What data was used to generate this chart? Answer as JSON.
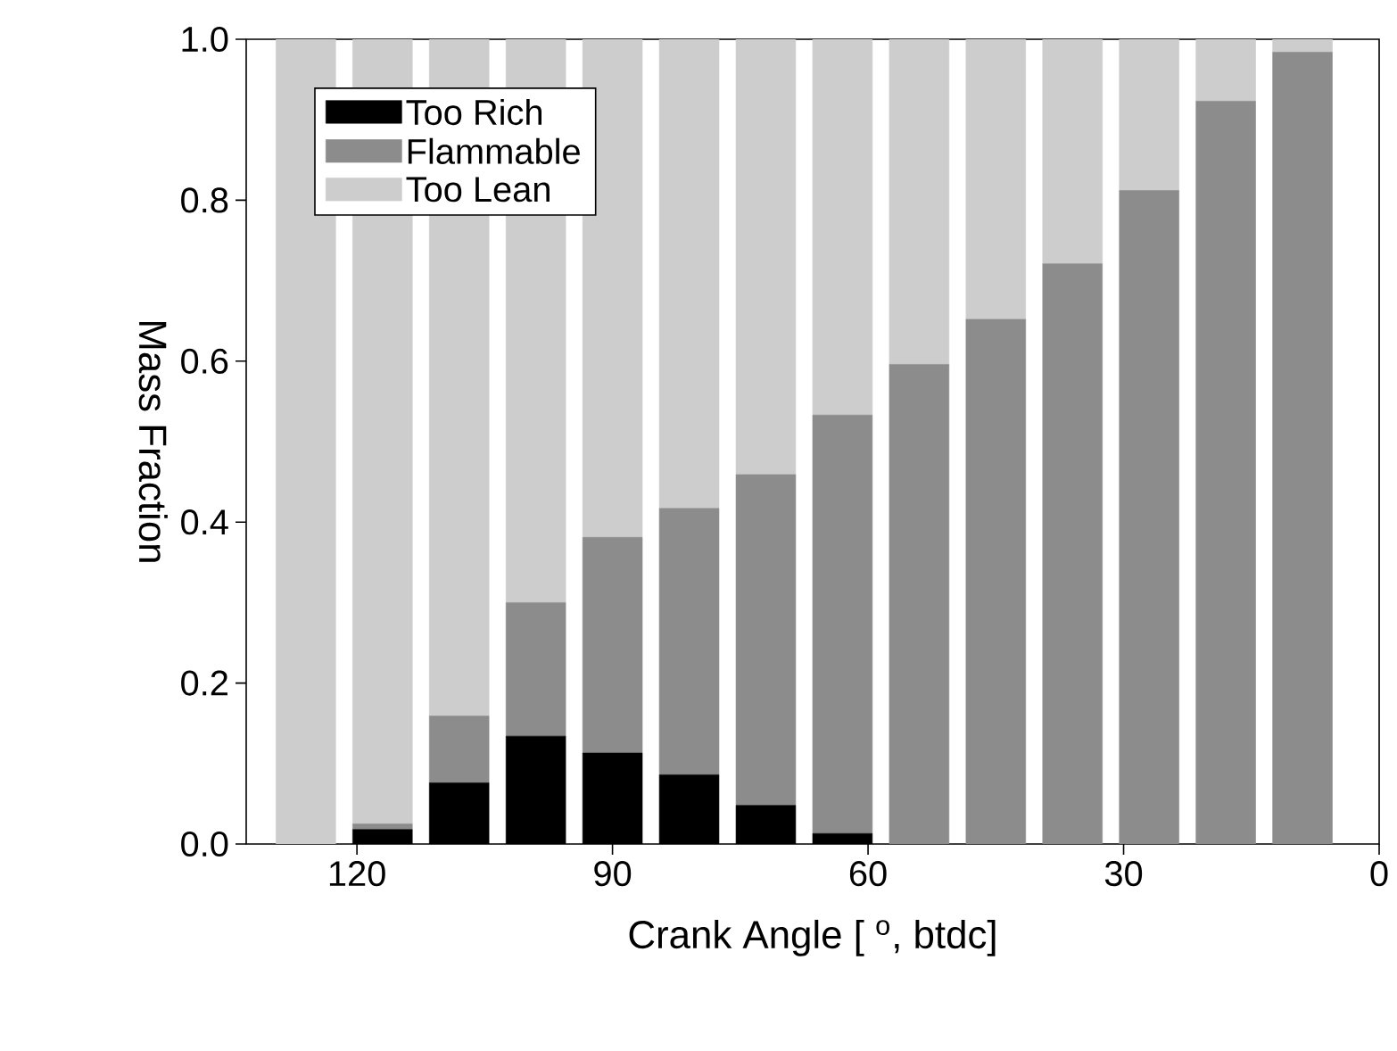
{
  "chart_data": {
    "type": "bar",
    "stacked": true,
    "xlabel": "Crank Angle [ $^{o}$, btdc]",
    "ylabel": "Mass Fraction",
    "x": [
      126,
      117,
      108,
      99,
      90,
      81,
      72,
      63,
      54,
      45,
      36,
      27,
      18,
      9
    ],
    "series": [
      {
        "name": "Too Rich",
        "color": "#000000",
        "values": [
          0,
          0.018,
          0.076,
          0.134,
          0.113,
          0.086,
          0.048,
          0.013,
          0,
          0,
          0,
          0,
          0,
          0
        ]
      },
      {
        "name": "Flammable",
        "color": "#8c8c8c",
        "values": [
          0,
          0.007,
          0.083,
          0.166,
          0.268,
          0.331,
          0.411,
          0.52,
          0.596,
          0.652,
          0.721,
          0.812,
          0.923,
          0.984
        ]
      },
      {
        "name": "Too Lean",
        "color": "#cdcdcd",
        "values": [
          1.0,
          0.975,
          0.841,
          0.7,
          0.619,
          0.583,
          0.541,
          0.467,
          0.404,
          0.348,
          0.279,
          0.188,
          0.077,
          0.016
        ]
      }
    ],
    "xlim": [
      133,
      0
    ],
    "xticks": [
      120,
      90,
      60,
      30,
      0
    ],
    "ylim": [
      0,
      1
    ],
    "yticks": [
      {
        "value": 0,
        "label": "0.0"
      },
      {
        "value": 0.2,
        "label": "0.2"
      },
      {
        "value": 0.4,
        "label": "0.4"
      },
      {
        "value": 0.6,
        "label": "0.6"
      },
      {
        "value": 0.8,
        "label": "0.8"
      },
      {
        "value": 1,
        "label": "1.0"
      }
    ],
    "legend": "top left",
    "grid": false
  }
}
